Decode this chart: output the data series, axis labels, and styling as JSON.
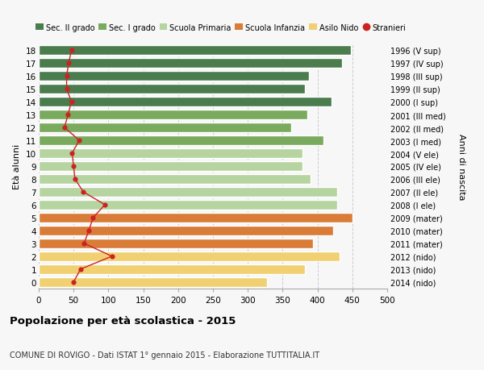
{
  "ages": [
    18,
    17,
    16,
    15,
    14,
    13,
    12,
    11,
    10,
    9,
    8,
    7,
    6,
    5,
    4,
    3,
    2,
    1,
    0
  ],
  "bar_values": [
    448,
    435,
    388,
    382,
    420,
    385,
    362,
    408,
    378,
    378,
    390,
    428,
    428,
    450,
    422,
    393,
    432,
    382,
    328
  ],
  "stranieri_values": [
    47,
    43,
    40,
    40,
    47,
    42,
    37,
    58,
    48,
    50,
    52,
    64,
    95,
    78,
    72,
    65,
    105,
    60,
    50
  ],
  "right_labels": [
    "1996 (V sup)",
    "1997 (IV sup)",
    "1998 (III sup)",
    "1999 (II sup)",
    "2000 (I sup)",
    "2001 (III med)",
    "2002 (II med)",
    "2003 (I med)",
    "2004 (V ele)",
    "2005 (IV ele)",
    "2006 (III ele)",
    "2007 (II ele)",
    "2008 (I ele)",
    "2009 (mater)",
    "2010 (mater)",
    "2011 (mater)",
    "2012 (nido)",
    "2013 (nido)",
    "2014 (nido)"
  ],
  "bar_colors": [
    "#4a7c4e",
    "#4a7c4e",
    "#4a7c4e",
    "#4a7c4e",
    "#4a7c4e",
    "#7aaa5e",
    "#7aaa5e",
    "#7aaa5e",
    "#b5d4a0",
    "#b5d4a0",
    "#b5d4a0",
    "#b5d4a0",
    "#b5d4a0",
    "#d97c38",
    "#d97c38",
    "#d97c38",
    "#f0d070",
    "#f0d070",
    "#f0d070"
  ],
  "legend_labels": [
    "Sec. II grado",
    "Sec. I grado",
    "Scuola Primaria",
    "Scuola Infanzia",
    "Asilo Nido",
    "Stranieri"
  ],
  "legend_colors": [
    "#4a7c4e",
    "#7aaa5e",
    "#b5d4a0",
    "#d97c38",
    "#f0d070",
    "#cc2222"
  ],
  "stranieri_color": "#cc2222",
  "title": "Popolazione per età scolastica - 2015",
  "subtitle": "COMUNE DI ROVIGO - Dati ISTAT 1° gennaio 2015 - Elaborazione TUTTITALIA.IT",
  "ylabel": "Età alunni",
  "right_ylabel": "Anni di nascita",
  "xlabel_vals": [
    0,
    50,
    100,
    150,
    200,
    250,
    300,
    350,
    400,
    450,
    500
  ],
  "xlim": [
    0,
    500
  ],
  "bg_color": "#f7f7f7",
  "figsize": [
    6.0,
    4.6
  ],
  "dpi": 100
}
